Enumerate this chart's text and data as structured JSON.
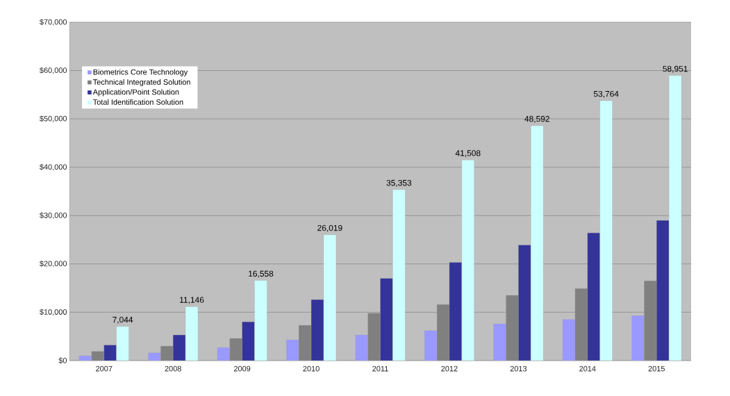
{
  "chart_data": {
    "type": "bar",
    "categories": [
      "2007",
      "2008",
      "2009",
      "2010",
      "2011",
      "2012",
      "2013",
      "2014",
      "2015"
    ],
    "series": [
      {
        "name": "Biometrics Core Technology",
        "color": "#9999ff",
        "values": [
          1000,
          1600,
          2700,
          4300,
          5300,
          6200,
          7600,
          8500,
          9300
        ]
      },
      {
        "name": "Technical Integrated Solution",
        "color": "#808080",
        "values": [
          1900,
          3000,
          4600,
          7300,
          9800,
          11600,
          13500,
          14900,
          16500
        ]
      },
      {
        "name": "Application/Point Solution",
        "color": "#333399",
        "values": [
          3200,
          5300,
          8000,
          12600,
          17000,
          20300,
          23900,
          26400,
          29000
        ]
      },
      {
        "name": "Total Identification Solution",
        "color": "#ccffff",
        "values": [
          7044,
          11146,
          16558,
          26019,
          35353,
          41508,
          48592,
          53764,
          58951
        ],
        "value_labels": [
          "7,044",
          "11,146",
          "16,558",
          "26,019",
          "35,353",
          "41,508",
          "48,592",
          "53,764",
          "58,951"
        ]
      }
    ],
    "ylim": [
      0,
      70000
    ],
    "yticks": [
      {
        "value": 0,
        "label": "$0"
      },
      {
        "value": 10000,
        "label": "$10,000"
      },
      {
        "value": 20000,
        "label": "$20,000"
      },
      {
        "value": 30000,
        "label": "$30,000"
      },
      {
        "value": 40000,
        "label": "$40,000"
      },
      {
        "value": 50000,
        "label": "$50,000"
      },
      {
        "value": 60000,
        "label": "$60,000"
      },
      {
        "value": 70000,
        "label": "$70,000"
      }
    ],
    "grid": "y",
    "legend": "top left"
  }
}
